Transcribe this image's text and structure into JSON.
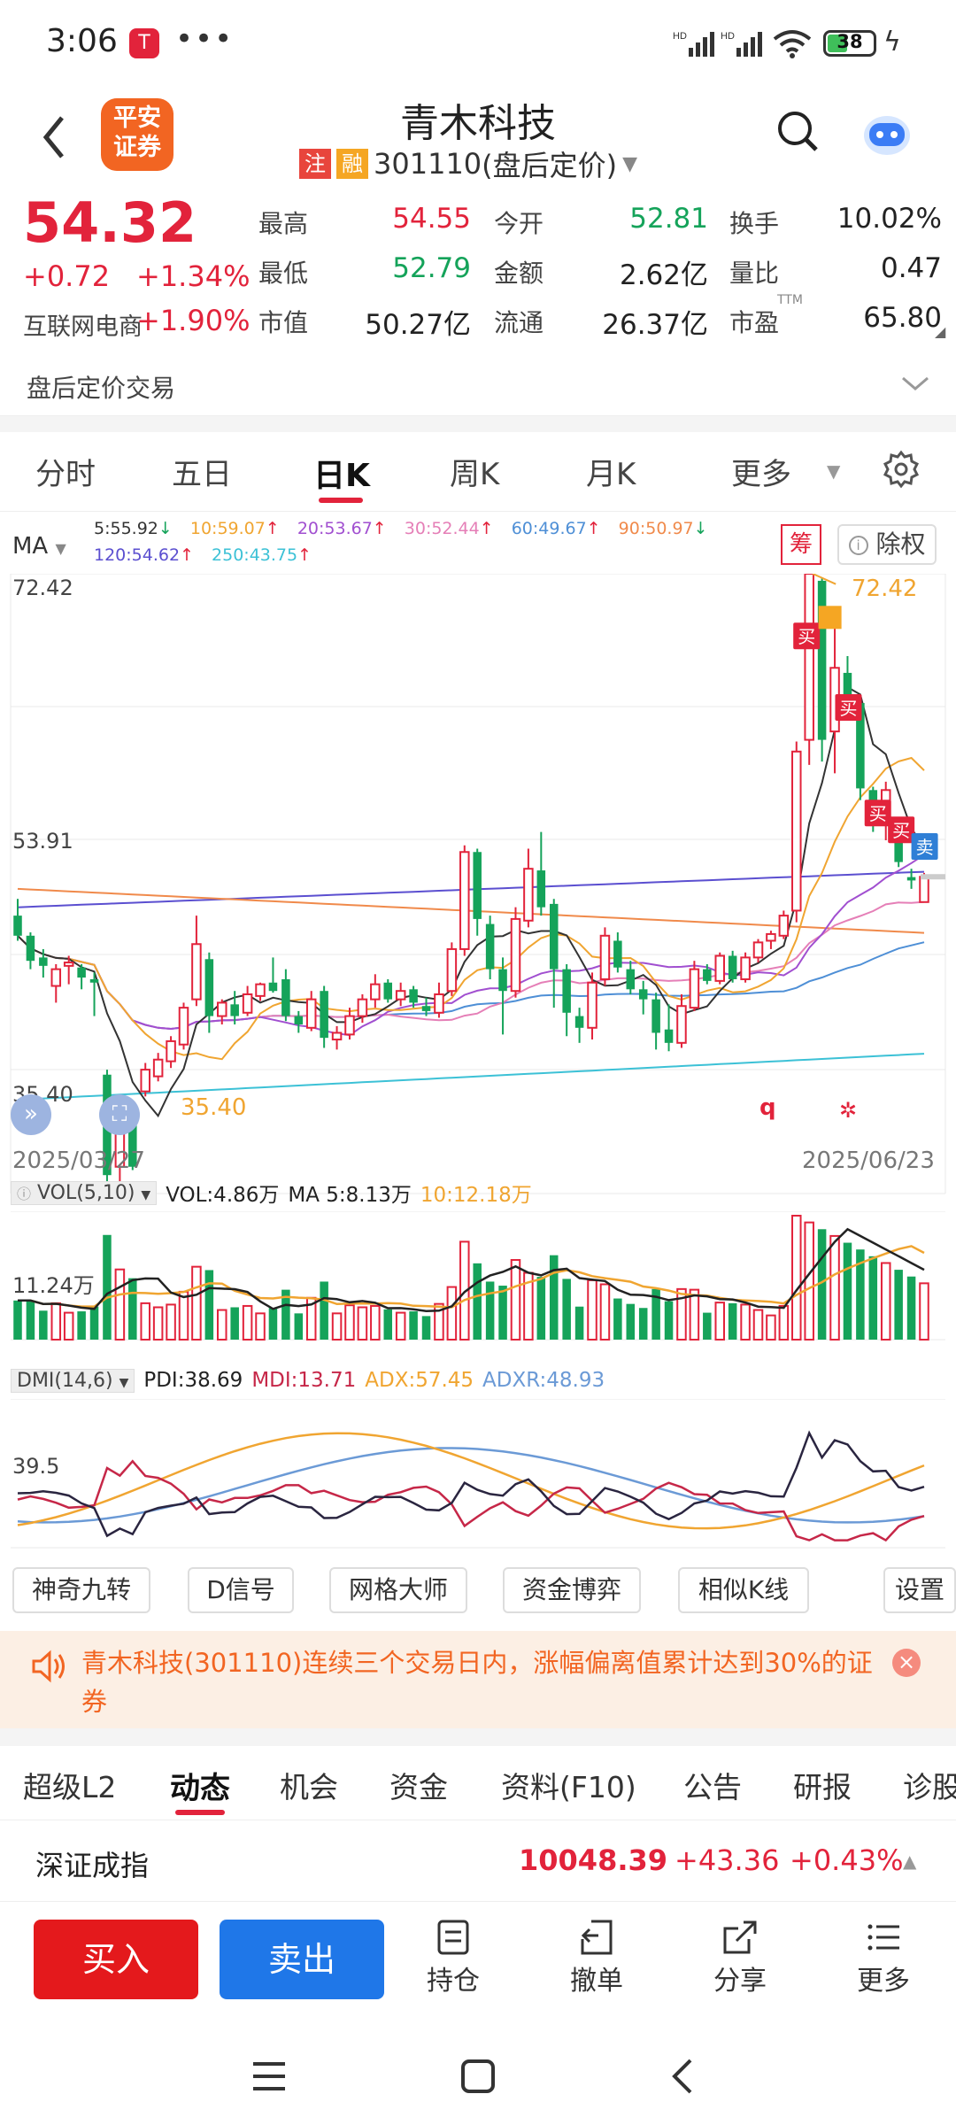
{
  "status": {
    "time": "3:06",
    "battery": "38"
  },
  "header": {
    "broker_logo": "平安\n证券",
    "title": "青木科技",
    "tag_zhu": "注",
    "tag_rong": "融",
    "code": "301110",
    "subtitle": "(盘后定价)"
  },
  "quote": {
    "price": "54.32",
    "change": "+0.72",
    "change_pct": "+1.34%",
    "sector_name": "互联网电商",
    "sector_pct": "+1.90%",
    "fields": [
      {
        "label": "最高",
        "value": "54.55",
        "color": "red"
      },
      {
        "label": "今开",
        "value": "52.81",
        "color": "green"
      },
      {
        "label": "换手",
        "value": "10.02%",
        "color": "dark"
      },
      {
        "label": "最低",
        "value": "52.79",
        "color": "green"
      },
      {
        "label": "金额",
        "value": "2.62亿",
        "color": "dark"
      },
      {
        "label": "量比",
        "value": "0.47",
        "color": "dark"
      },
      {
        "label": "市值",
        "value": "50.27亿",
        "color": "dark"
      },
      {
        "label": "流通",
        "value": "26.37亿",
        "color": "dark"
      },
      {
        "label": "市盈",
        "value": "65.80",
        "color": "dark"
      }
    ],
    "pe_tag": "TTM"
  },
  "after_hours": {
    "label": "盘后定价交易"
  },
  "period_tabs": [
    "分时",
    "五日",
    "日K",
    "周K",
    "月K",
    "更多"
  ],
  "active_period": 2,
  "kline": {
    "ma_label": "MA",
    "ma_items": [
      {
        "text": "5:55.92",
        "arrow": "↓",
        "color": "#333333"
      },
      {
        "text": "10:59.07",
        "arrow": "↑",
        "color": "#f0a531"
      },
      {
        "text": "20:53.67",
        "arrow": "↑",
        "color": "#a14fd0"
      },
      {
        "text": "30:52.44",
        "arrow": "↑",
        "color": "#e57fb7"
      },
      {
        "text": "60:49.67",
        "arrow": "↑",
        "color": "#4e8fd6"
      },
      {
        "text": "90:50.97",
        "arrow": "↓",
        "color": "#f08a4b"
      },
      {
        "text": "120:54.62",
        "arrow": "↑",
        "color": "#5b4fd0"
      },
      {
        "text": "250:43.75",
        "arrow": "↑",
        "color": "#3cc1d6"
      }
    ],
    "chip_btn": "筹",
    "fq_btn": "除权",
    "y_max": "72.42",
    "y_mid": "53.91",
    "y_min": "35.40",
    "max_tag": "72.42",
    "min_tag": "35.40",
    "date_start": "2025/03/27",
    "date_end": "2025/06/23",
    "buy_tag": "买",
    "sell_tag": "卖",
    "q_mark": "q",
    "vol_label": "VOL(5,10)",
    "vol_value": "VOL:4.86万",
    "vol_ma5": "MA 5:8.13万",
    "vol_ma10": "10:12.18万",
    "vol_axis": "11.24万",
    "dmi_label": "DMI(14,6)",
    "dmi_pdi": "PDI:38.69",
    "dmi_mdi": "MDI:13.71",
    "dmi_adx": "ADX:57.45",
    "dmi_adxr": "ADXR:48.93",
    "dmi_axis": "39.5"
  },
  "chart_data": {
    "type": "candlestick",
    "y_range": [
      35.4,
      72.42
    ],
    "date_range": [
      "2025/03/27",
      "2025/06/23"
    ],
    "candles": [
      [
        52.0,
        50.8,
        53.0,
        50.5
      ],
      [
        50.8,
        49.3,
        51.0,
        48.8
      ],
      [
        49.5,
        49.0,
        50.0,
        48.3
      ],
      [
        47.8,
        48.8,
        49.1,
        46.8
      ],
      [
        49.0,
        49.2,
        49.6,
        47.9
      ],
      [
        48.9,
        48.3,
        49.1,
        47.6
      ],
      [
        48.2,
        48.0,
        48.6,
        46.0
      ],
      [
        42.5,
        36.5,
        42.8,
        35.4
      ],
      [
        37.0,
        40.5,
        40.8,
        36.0
      ],
      [
        40.3,
        37.0,
        40.5,
        36.8
      ],
      [
        41.5,
        42.8,
        43.2,
        41.2
      ],
      [
        42.4,
        43.4,
        43.8,
        42.1
      ],
      [
        43.3,
        44.5,
        44.8,
        42.9
      ],
      [
        44.3,
        46.5,
        46.8,
        44.0
      ],
      [
        47.0,
        50.3,
        52.0,
        46.6
      ],
      [
        49.4,
        46.0,
        49.8,
        45.0
      ],
      [
        46.0,
        46.8,
        47.0,
        45.5
      ],
      [
        46.7,
        46.0,
        47.5,
        45.5
      ],
      [
        46.2,
        47.3,
        47.8,
        46.0
      ],
      [
        47.2,
        47.9,
        48.0,
        46.9
      ],
      [
        48.0,
        47.5,
        49.5,
        47.4
      ],
      [
        48.2,
        46.0,
        48.8,
        45.7
      ],
      [
        46.0,
        45.5,
        46.3,
        45.0
      ],
      [
        45.3,
        47.0,
        47.5,
        45.1
      ],
      [
        47.5,
        44.7,
        47.8,
        44.1
      ],
      [
        44.6,
        45.0,
        45.4,
        44.0
      ],
      [
        44.9,
        46.0,
        46.5,
        44.6
      ],
      [
        46.0,
        47.0,
        47.3,
        45.6
      ],
      [
        47.0,
        47.9,
        48.5,
        46.5
      ],
      [
        48.0,
        47.0,
        48.2,
        46.8
      ],
      [
        47.0,
        47.5,
        48.0,
        46.6
      ],
      [
        47.6,
        46.8,
        47.8,
        46.5
      ],
      [
        46.6,
        46.3,
        47.1,
        46.0
      ],
      [
        46.2,
        47.3,
        48.0,
        45.9
      ],
      [
        47.5,
        50.0,
        50.4,
        47.2
      ],
      [
        50.0,
        55.8,
        56.2,
        49.6
      ],
      [
        55.8,
        51.8,
        56.0,
        50.8
      ],
      [
        51.5,
        48.8,
        52.0,
        48.2
      ],
      [
        48.8,
        47.5,
        49.5,
        44.9
      ],
      [
        47.5,
        51.8,
        52.5,
        47.1
      ],
      [
        51.7,
        54.8,
        56.0,
        51.3
      ],
      [
        54.7,
        52.5,
        57.0,
        52.0
      ],
      [
        52.7,
        48.8,
        53.0,
        46.5
      ],
      [
        48.8,
        46.2,
        49.1,
        44.8
      ],
      [
        46.0,
        45.3,
        46.5,
        44.4
      ],
      [
        45.3,
        48.0,
        48.6,
        44.6
      ],
      [
        48.2,
        50.8,
        51.3,
        47.8
      ],
      [
        50.5,
        48.9,
        51.0,
        48.6
      ],
      [
        48.8,
        47.6,
        49.3,
        47.3
      ],
      [
        47.6,
        47.0,
        48.1,
        46.1
      ],
      [
        47.0,
        45.0,
        47.4,
        44.0
      ],
      [
        45.2,
        44.4,
        46.7,
        43.9
      ],
      [
        44.4,
        46.6,
        47.3,
        44.1
      ],
      [
        46.5,
        48.8,
        49.3,
        46.3
      ],
      [
        48.8,
        48.1,
        49.1,
        47.9
      ],
      [
        48.1,
        49.6,
        49.8,
        47.9
      ],
      [
        49.6,
        48.2,
        49.9,
        48.0
      ],
      [
        48.2,
        49.5,
        49.8,
        48.0
      ],
      [
        49.5,
        50.4,
        50.6,
        49.2
      ],
      [
        50.5,
        50.9,
        51.1,
        50.0
      ],
      [
        50.8,
        52.0,
        52.3,
        50.6
      ],
      [
        52.3,
        61.8,
        62.4,
        51.6
      ],
      [
        62.5,
        72.42,
        72.42,
        61.0
      ],
      [
        72.0,
        62.5,
        72.2,
        61.2
      ],
      [
        63.0,
        66.8,
        69.2,
        60.5
      ],
      [
        66.5,
        64.7,
        67.5,
        64.0
      ],
      [
        64.7,
        59.6,
        65.1,
        58.9
      ],
      [
        59.5,
        57.6,
        59.7,
        57.0
      ],
      [
        58.0,
        59.5,
        60.0,
        56.5
      ],
      [
        57.5,
        55.2,
        57.8,
        54.9
      ],
      [
        54.3,
        54.1,
        54.8,
        53.6
      ],
      [
        52.81,
        54.32,
        54.55,
        52.79
      ]
    ],
    "ma_series": [
      "MA5",
      "MA10",
      "MA20",
      "MA30",
      "MA60",
      "MA90",
      "MA120",
      "MA250"
    ]
  },
  "tools": [
    "神奇九转",
    "D信号",
    "网格大师",
    "资金博弈",
    "相似K线",
    "设置"
  ],
  "notice": {
    "text": "青木科技(301110)连续三个交易日内，涨幅偏离值累计达到30%的证券"
  },
  "info_tabs": [
    "超级L2",
    "动态",
    "机会",
    "资金",
    "资料(F10)",
    "公告",
    "研报",
    "诊股"
  ],
  "active_info_tab": 1,
  "index": {
    "name": "深证成指",
    "value": "10048.39",
    "change": "+43.36",
    "pct": "+0.43%"
  },
  "actions": {
    "buy": "买入",
    "sell": "卖出",
    "items": [
      "持仓",
      "撤单",
      "分享",
      "更多"
    ]
  }
}
